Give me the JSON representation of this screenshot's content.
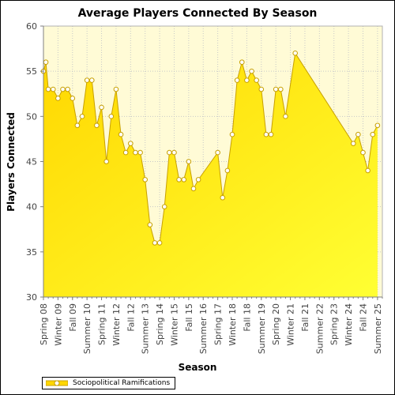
{
  "colors": {
    "fill": "#ffd700",
    "fill_light": "#ffff33",
    "line": "#c8a000",
    "plot_bg": "#fffbd6",
    "marker": "#ffffff"
  },
  "chart_data": {
    "type": "area",
    "title": "Average Players Connected By Season",
    "xlabel": "Season",
    "ylabel": "Players Connected",
    "ylim": [
      30,
      60
    ],
    "yticks": [
      30,
      35,
      40,
      45,
      50,
      55,
      60
    ],
    "legend": "bottom-left",
    "grid": true,
    "x_range": [
      0,
      70
    ],
    "x_tick_labels": [
      {
        "i": 0,
        "label": "Spring 08"
      },
      {
        "i": 3,
        "label": "Winter 09"
      },
      {
        "i": 6,
        "label": "Fall 09"
      },
      {
        "i": 9,
        "label": "Summer 10"
      },
      {
        "i": 12,
        "label": "Spring 11"
      },
      {
        "i": 15,
        "label": "Winter 12"
      },
      {
        "i": 18,
        "label": "Fall 12"
      },
      {
        "i": 21,
        "label": "Summer 13"
      },
      {
        "i": 24,
        "label": "Spring 14"
      },
      {
        "i": 27,
        "label": "Winter 15"
      },
      {
        "i": 30,
        "label": "Fall 15"
      },
      {
        "i": 33,
        "label": "Summer 16"
      },
      {
        "i": 36,
        "label": "Spring 17"
      },
      {
        "i": 39,
        "label": "Winter 18"
      },
      {
        "i": 42,
        "label": "Fall 18"
      },
      {
        "i": 45,
        "label": "Summer 19"
      },
      {
        "i": 48,
        "label": "Spring 20"
      },
      {
        "i": 51,
        "label": "Winter 21"
      },
      {
        "i": 54,
        "label": "Fall 21"
      },
      {
        "i": 57,
        "label": "Summer 22"
      },
      {
        "i": 60,
        "label": "Spring 23"
      },
      {
        "i": 63,
        "label": "Winter 24"
      },
      {
        "i": 66,
        "label": "Fall 24"
      },
      {
        "i": 69,
        "label": "Summer 25"
      }
    ],
    "series": [
      {
        "name": "Sociopolitical Ramifications",
        "points": [
          [
            0,
            55
          ],
          [
            0.5,
            56
          ],
          [
            1,
            53
          ],
          [
            2,
            53
          ],
          [
            3,
            52
          ],
          [
            4,
            53
          ],
          [
            5,
            53
          ],
          [
            6,
            52
          ],
          [
            7,
            49
          ],
          [
            8,
            50
          ],
          [
            9,
            54
          ],
          [
            10,
            54
          ],
          [
            11,
            49
          ],
          [
            12,
            51
          ],
          [
            13,
            45
          ],
          [
            14,
            50
          ],
          [
            15,
            53
          ],
          [
            16,
            48
          ],
          [
            17,
            46
          ],
          [
            18,
            47
          ],
          [
            19,
            46
          ],
          [
            20,
            46
          ],
          [
            21,
            43
          ],
          [
            22,
            38
          ],
          [
            23,
            36
          ],
          [
            24,
            36
          ],
          [
            25,
            40
          ],
          [
            26,
            46
          ],
          [
            27,
            46
          ],
          [
            28,
            43
          ],
          [
            29,
            43
          ],
          [
            30,
            45
          ],
          [
            31,
            42
          ],
          [
            32,
            43
          ],
          [
            36,
            46
          ],
          [
            37,
            41
          ],
          [
            38,
            44
          ],
          [
            39,
            48
          ],
          [
            40,
            54
          ],
          [
            41,
            56
          ],
          [
            42,
            54
          ],
          [
            43,
            55
          ],
          [
            44,
            54
          ],
          [
            45,
            53
          ],
          [
            46,
            48
          ],
          [
            47,
            48
          ],
          [
            48,
            53
          ],
          [
            49,
            53
          ],
          [
            50,
            50
          ],
          [
            52,
            57
          ],
          [
            64,
            47
          ],
          [
            65,
            48
          ],
          [
            66,
            46
          ],
          [
            67,
            44
          ],
          [
            68,
            48
          ],
          [
            69,
            49
          ]
        ]
      }
    ]
  }
}
